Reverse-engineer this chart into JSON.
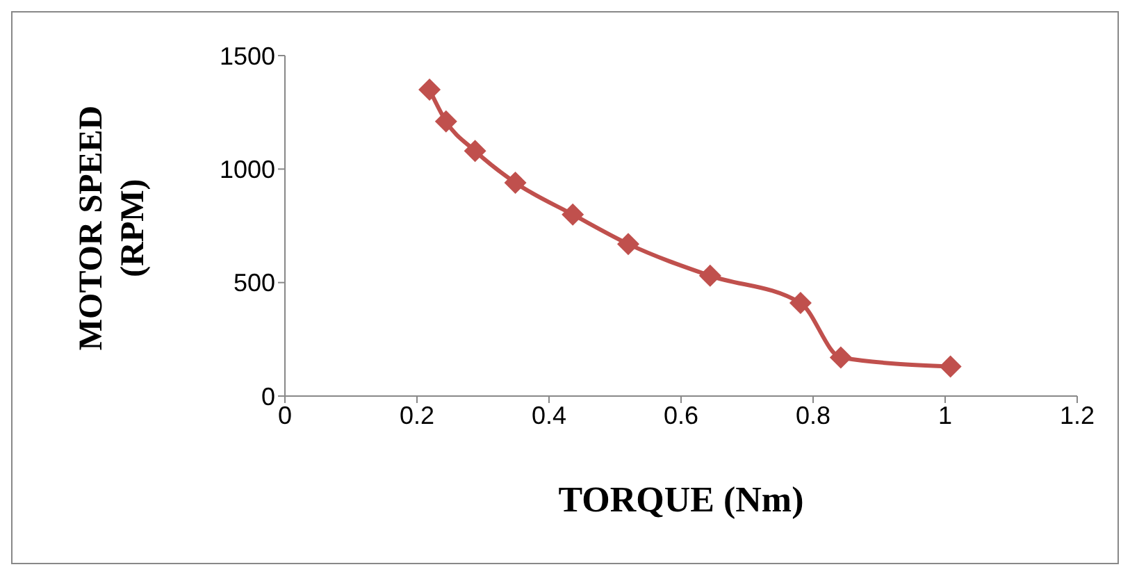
{
  "chart_data": {
    "type": "line",
    "xlabel": "TORQUE (Nm)",
    "ylabel": "MOTOR SPEED (RPM)",
    "xlim": [
      0,
      1.2
    ],
    "xticks": [
      0,
      0.2,
      0.4,
      0.6,
      0.8,
      1,
      1.2
    ],
    "ylim": [
      0,
      1500
    ],
    "yticks": [
      0,
      500,
      1000,
      1500
    ],
    "grid": false,
    "marker": "diamond",
    "line_style": "solid",
    "series": [
      {
        "color": "#c0504d",
        "x": [
          0.219,
          0.244,
          0.288,
          0.349,
          0.436,
          0.52,
          0.644,
          0.781,
          0.842,
          1.008
        ],
        "values": [
          1350,
          1210,
          1080,
          940,
          800,
          670,
          530,
          410,
          170,
          130
        ]
      }
    ]
  }
}
